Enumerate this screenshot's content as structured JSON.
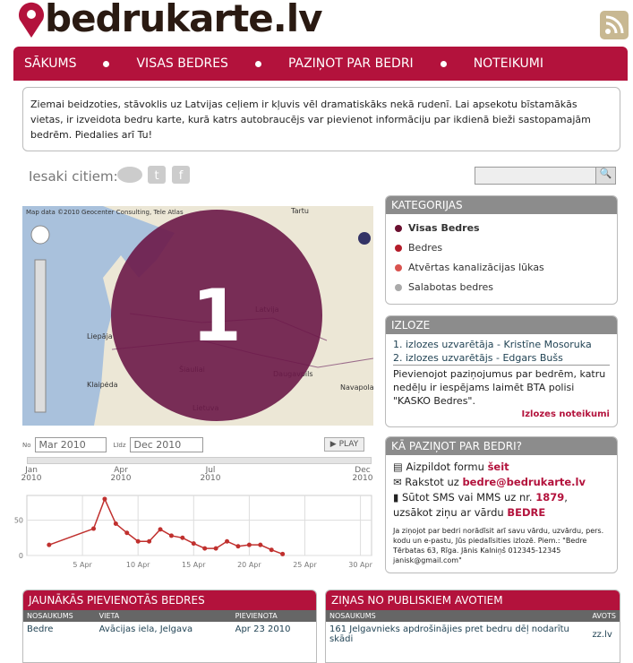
{
  "header": {
    "logo": "bedrukarte.lv"
  },
  "nav": [
    "SĀKUMS",
    "VISAS BEDRES",
    "PAZIŅOT PAR BEDRI",
    "NOTEIKUMI"
  ],
  "intro": "Ziemai beidzoties, stāvoklis uz Latvijas ceļiem ir kļuvis vēl dramatiskāks nekā rudenī. Lai apsekotu bīstamākās vietas, ir izveidota bedru karte, kurā katrs autobraucējs var pievienot informāciju par ikdienā bieži sastopamajām bedrēm. Piedalies arī Tu!",
  "share_label": "Iesaki citiem:",
  "map": {
    "attribution": "Map data ©2010 Geocenter Consulting, Tele Atlas",
    "cluster": "1",
    "labels": [
      "Tartu",
      "Latvija",
      "Liepāja",
      "Šiauliai",
      "Klaipėda",
      "Lietuva",
      "Daugavpils",
      "Navapolatsk"
    ]
  },
  "timeline": {
    "from_label": "No",
    "from": "Mar 2010",
    "to_label": "Līdz",
    "to": "Dec 2010",
    "play": "PLAY",
    "axis": [
      "Jan 2010",
      "Apr 2010",
      "Jul 2010",
      "Dec 2010"
    ]
  },
  "trend_chart": {
    "type": "line",
    "color": "#c0302e",
    "x": [
      2,
      6,
      7,
      8,
      9,
      10,
      11,
      12,
      13,
      14,
      15,
      16,
      17,
      18,
      19,
      20,
      21,
      22,
      23
    ],
    "values": [
      15,
      38,
      80,
      45,
      32,
      20,
      20,
      37,
      28,
      25,
      17,
      10,
      10,
      20,
      13,
      15,
      15,
      8,
      2
    ],
    "xlim": [
      0,
      31
    ],
    "ylim": [
      0,
      85
    ],
    "yticks": [
      0,
      50
    ],
    "xticks": [
      {
        "value": 5,
        "label": "5 Apr"
      },
      {
        "value": 10,
        "label": "10 Apr"
      },
      {
        "value": 15,
        "label": "15 Apr"
      },
      {
        "value": 20,
        "label": "20 Apr"
      },
      {
        "value": 25,
        "label": "25 Apr"
      },
      {
        "value": 30,
        "label": "30 Apr"
      }
    ],
    "grid": true
  },
  "categories": {
    "title": "KATEGORIJAS",
    "items": [
      {
        "label": "Visas Bedres",
        "color": "#6b1030"
      },
      {
        "label": "Bedres",
        "color": "#b41c2a"
      },
      {
        "label": "Atvērtas kanalizācijas lūkas",
        "color": "#d9534f"
      },
      {
        "label": "Salabotas bedres",
        "color": "#aaaaaa"
      }
    ]
  },
  "lottery": {
    "title": "IZLOZE",
    "winners": [
      "1. izlozes uzvarētāja - Kristīne Mosoruka",
      "2. izlozes uzvarētājs - Edgars Bušs"
    ],
    "text": "Pievienojot paziņojumus par bedrēm, katru nedēļu ir iespējams laimēt BTA polisi \"KASKO Bedres\".",
    "rules_link": "Izlozes noteikumi"
  },
  "how": {
    "title": "KĀ PAZIŅOT PAR BEDRI?",
    "form": {
      "text": "Aizpildot formu ",
      "link": "šeit"
    },
    "email": {
      "text": "Rakstot uz ",
      "link": "bedre@bedrukarte.lv"
    },
    "sms": {
      "text": "Sūtot SMS vai MMS uz nr. ",
      "number": "1879",
      "text2": ", uzsākot ziņu ar vārdu ",
      "word": "BEDRE"
    },
    "note": "Ja ziņojot par bedri norādīsit arī savu vārdu, uzvārdu, pers. kodu un e-pastu, Jūs piedalīsities izlozē. Piem.: \"Bedre Tērbatas 63, Rīga. Jānis Kalniņš 012345-12345 janisk@gmail.com\""
  },
  "latest": {
    "title": "JAUNĀKĀS PIEVIENOTĀS BEDRES",
    "headers": [
      "NOSAUKUMS",
      "VIETA",
      "PIEVIENOTA"
    ],
    "rows": [
      [
        "Bedre",
        "Avācijas iela, Jelgava",
        "Apr 23 2010"
      ]
    ]
  },
  "news": {
    "title": "ZIŅAS NO PUBLISKIEM AVOTIEM",
    "headers": [
      "NOSAUKUMS",
      "AVOTS"
    ],
    "rows": [
      [
        "161 Jelgavnieks apdrošinājies pret bedru dēļ nodarītu skādi",
        "zz.lv"
      ]
    ]
  }
}
